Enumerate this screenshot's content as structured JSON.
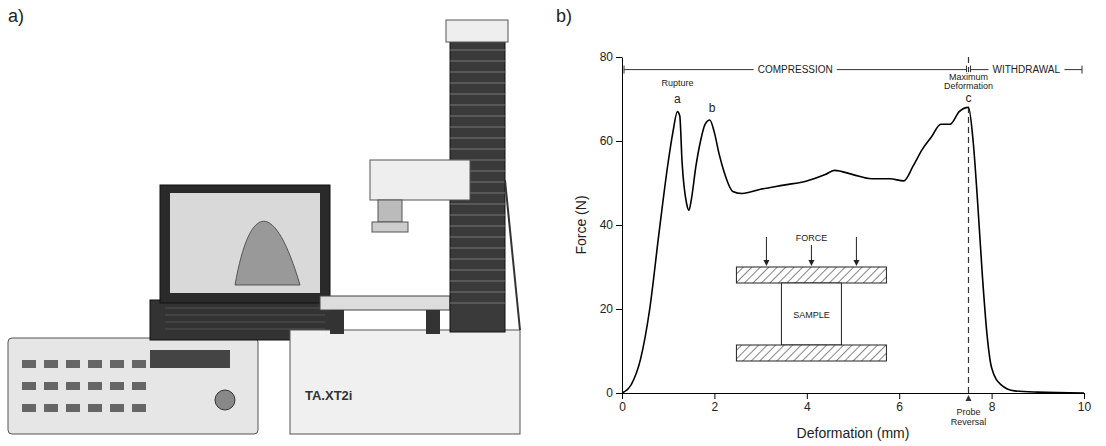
{
  "figure": {
    "panel_a_label": "a)",
    "panel_b_label": "b)",
    "device_label": "TA.XT2i"
  },
  "chart_data": {
    "type": "line",
    "x_label": "Deformation (mm)",
    "y_label": "Force (N)",
    "xlim": [
      0,
      10
    ],
    "ylim": [
      0,
      80
    ],
    "xticks": [
      0,
      2,
      4,
      6,
      8,
      10
    ],
    "yticks": [
      0,
      20,
      40,
      60,
      80
    ],
    "grid": false,
    "x": [
      0,
      0.2,
      0.4,
      0.6,
      0.8,
      1.0,
      1.1,
      1.2,
      1.25,
      1.3,
      1.4,
      1.45,
      1.5,
      1.6,
      1.7,
      1.8,
      1.9,
      2.0,
      2.1,
      2.2,
      2.4,
      2.6,
      3.0,
      3.5,
      4.0,
      4.4,
      4.6,
      5.0,
      5.4,
      5.8,
      6.1,
      6.3,
      6.5,
      6.7,
      6.9,
      7.1,
      7.3,
      7.5,
      7.6,
      7.7,
      7.8,
      7.9,
      8.0,
      8.2,
      8.5,
      9.0,
      10
    ],
    "series": [
      {
        "color": "#000000",
        "values": [
          0,
          2,
          8,
          20,
          38,
          55,
          62,
          67,
          66,
          55,
          45,
          43.5,
          46,
          54,
          60,
          64,
          65,
          62,
          57,
          53,
          48,
          47.5,
          48.5,
          49.5,
          50.5,
          52,
          53,
          52,
          51,
          51,
          50.5,
          54,
          58,
          61,
          64,
          64,
          67,
          68,
          60,
          45,
          28,
          14,
          6,
          2,
          0.5,
          0.2,
          0
        ]
      }
    ],
    "regions": [
      {
        "text": "COMPRESSION",
        "from": 0,
        "to": 7.5,
        "y": 77
      },
      {
        "text": "WITHDRAWAL",
        "from": 7.5,
        "to": 10,
        "y": 77
      }
    ],
    "annotations": [
      {
        "text": "Rupture",
        "x": 1.2,
        "y": 73
      },
      {
        "text": "a",
        "x": 1.2,
        "y": 69
      },
      {
        "text": "b",
        "x": 1.95,
        "y": 67
      },
      {
        "text": "Maximum Deformation",
        "x": 7.5,
        "y": 74.5
      },
      {
        "text": "c",
        "x": 7.5,
        "y": 69.3
      }
    ],
    "reference_line": {
      "x": 7.5,
      "label": "Probe Reversal",
      "line_style": "dashed"
    },
    "inset": {
      "force_label": "FORCE",
      "sample_label": "SAMPLE"
    }
  }
}
